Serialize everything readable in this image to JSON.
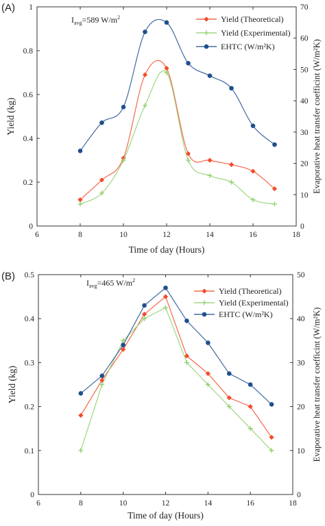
{
  "chart_data": [
    {
      "type": "line",
      "panel_label": "(A)",
      "annotation": {
        "prefix": "I",
        "subscript": "avg",
        "value": "=589 W/m",
        "superscript": "2"
      },
      "x": [
        8,
        9,
        10,
        11,
        12,
        13,
        14,
        15,
        16,
        17
      ],
      "xlabel": "Time of day (Hours)",
      "xlim": [
        6,
        18
      ],
      "xticks": [
        "6",
        "8",
        "10",
        "12",
        "14",
        "16",
        "18"
      ],
      "ylabel": "Yield (kg)",
      "ylim": [
        0,
        1.0
      ],
      "yticks": [
        "0",
        "0.2",
        "0.4",
        "0.6",
        "0.8",
        "1"
      ],
      "y2label": "Evaporative heat transfer coefficint (W/m²K)",
      "y2lim": [
        0,
        70
      ],
      "y2ticks": [
        "0",
        "10",
        "20",
        "30",
        "40",
        "50",
        "60",
        "70"
      ],
      "legend_position": "top-right",
      "series": [
        {
          "name": "Yield (Theoretical)",
          "axis": "left",
          "color": "#f44b29",
          "marker": "diamond",
          "values": [
            0.12,
            0.21,
            0.31,
            0.69,
            0.72,
            0.33,
            0.3,
            0.28,
            0.25,
            0.17
          ]
        },
        {
          "name": "Yield (Experimental)",
          "axis": "left",
          "color": "#8dcf6a",
          "marker": "plus",
          "values": [
            0.1,
            0.15,
            0.3,
            0.55,
            0.7,
            0.3,
            0.23,
            0.2,
            0.12,
            0.1
          ]
        },
        {
          "name": "EHTC (W/m²K)",
          "axis": "right",
          "color": "#1f4f8f",
          "marker": "circle",
          "values": [
            24,
            33,
            38,
            62,
            65,
            52,
            48,
            44,
            32,
            26
          ]
        }
      ]
    },
    {
      "type": "line",
      "panel_label": "(B)",
      "annotation": {
        "prefix": "I",
        "subscript": "avg",
        "value": "=465 W/m",
        "superscript": "2"
      },
      "x": [
        8,
        9,
        10,
        11,
        12,
        13,
        14,
        15,
        16,
        17
      ],
      "xlabel": "Time of day (Hours)",
      "xlim": [
        6,
        18
      ],
      "xticks": [
        "6",
        "8",
        "10",
        "12",
        "14",
        "16",
        "18"
      ],
      "ylabel": "Yield (kg)",
      "ylim": [
        0,
        0.5
      ],
      "yticks": [
        "0",
        "0.1",
        "0.2",
        "0.3",
        "0.4",
        "0.5"
      ],
      "y2label": "Evaporative heat transfer coefficint (W/m²K)",
      "y2lim": [
        0,
        50
      ],
      "y2ticks": [
        "0",
        "10",
        "20",
        "30",
        "40",
        "50"
      ],
      "legend_position": "top-right",
      "series": [
        {
          "name": "Yield (Theoretical)",
          "axis": "left",
          "color": "#f44b29",
          "marker": "diamond",
          "values": [
            0.18,
            0.26,
            0.33,
            0.41,
            0.45,
            0.315,
            0.275,
            0.22,
            0.2,
            0.13
          ]
        },
        {
          "name": "Yield (Experimental)",
          "axis": "left",
          "color": "#8dcf6a",
          "marker": "plus",
          "values": [
            0.1,
            0.25,
            0.35,
            0.4,
            0.425,
            0.3,
            0.25,
            0.2,
            0.15,
            0.1
          ]
        },
        {
          "name": "EHTC (W/m²K)",
          "axis": "right",
          "color": "#1f4f8f",
          "marker": "circle",
          "values": [
            23,
            27,
            34,
            43,
            47,
            39.5,
            34.5,
            27.5,
            25,
            20.5
          ]
        }
      ]
    }
  ]
}
